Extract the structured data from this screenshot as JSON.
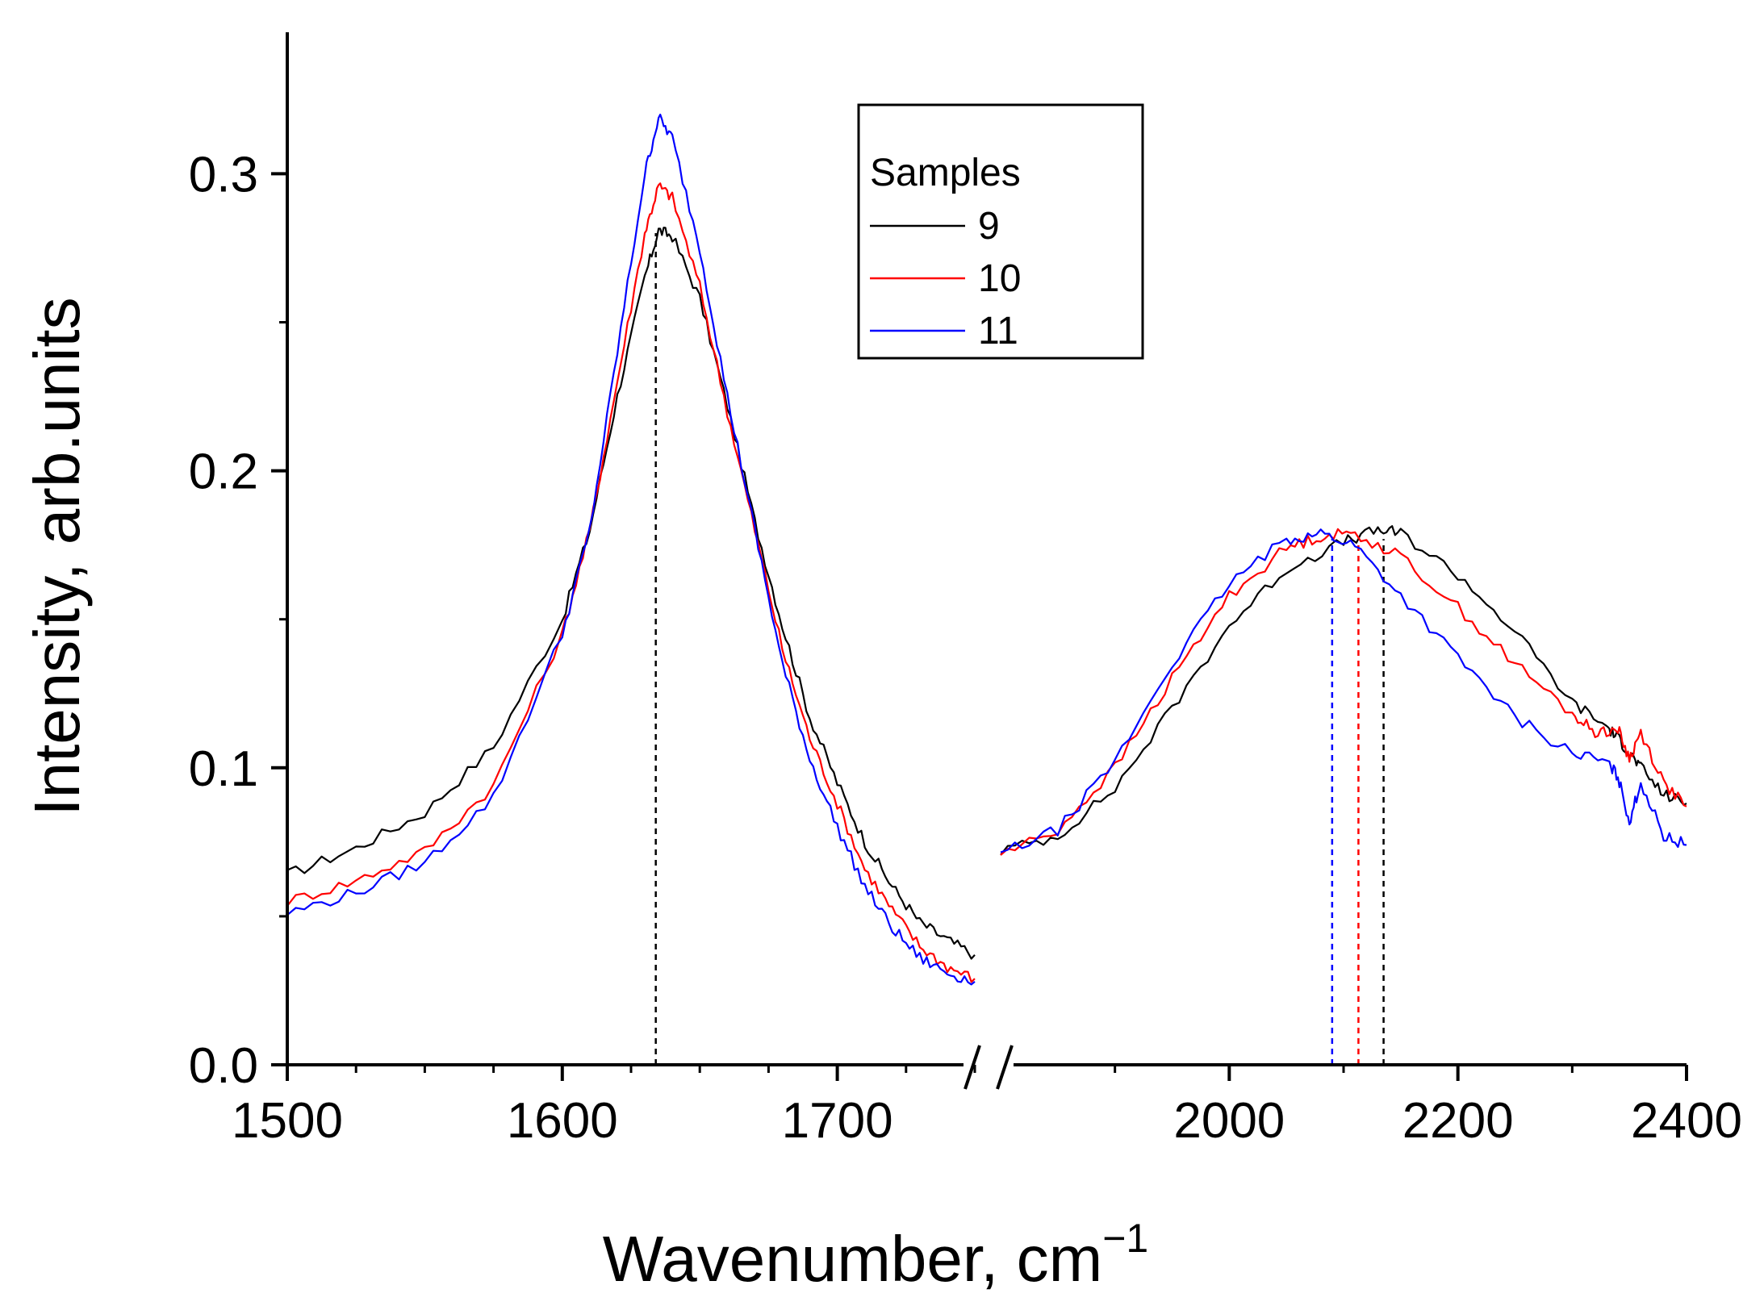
{
  "chart_data": {
    "type": "line",
    "title": "",
    "xlabel": "Wavenumber, cm",
    "xlabel_superscript": "−1",
    "ylabel": "Intensity, arb.units",
    "y_ticks": [
      "0.0",
      "0.1",
      "0.2",
      "0.3"
    ],
    "ylim": [
      0,
      0.35
    ],
    "broken_x_axis": true,
    "panels": [
      {
        "name": "left",
        "xlim": [
          1500,
          1750
        ],
        "tick_labels": [
          "1500",
          "1600",
          "1700"
        ],
        "minor_step": 25,
        "major_step": 100
      },
      {
        "name": "right",
        "xlim": [
          1800,
          2400
        ],
        "tick_labels": [
          "2000",
          "2200",
          "2400"
        ],
        "minor_step": 100,
        "major_step": 200
      }
    ],
    "legend": {
      "title": "Samples",
      "position": "top-center",
      "entries": [
        {
          "label": "9",
          "color": "#000000"
        },
        {
          "label": "10",
          "color": "#ff0000"
        },
        {
          "label": "11",
          "color": "#0000ff"
        }
      ]
    },
    "series": [
      {
        "name": "9",
        "color": "#000000",
        "left": [
          [
            1500,
            0.064
          ],
          [
            1525,
            0.073
          ],
          [
            1550,
            0.085
          ],
          [
            1575,
            0.107
          ],
          [
            1600,
            0.15
          ],
          [
            1610,
            0.18
          ],
          [
            1620,
            0.225
          ],
          [
            1630,
            0.265
          ],
          [
            1635,
            0.281
          ],
          [
            1640,
            0.279
          ],
          [
            1650,
            0.258
          ],
          [
            1660,
            0.222
          ],
          [
            1670,
            0.183
          ],
          [
            1680,
            0.148
          ],
          [
            1690,
            0.117
          ],
          [
            1700,
            0.095
          ],
          [
            1710,
            0.075
          ],
          [
            1720,
            0.06
          ],
          [
            1730,
            0.048
          ],
          [
            1740,
            0.042
          ],
          [
            1750,
            0.037
          ]
        ],
        "right": [
          [
            1800,
            0.072
          ],
          [
            1850,
            0.077
          ],
          [
            1900,
            0.093
          ],
          [
            1950,
            0.12
          ],
          [
            2000,
            0.148
          ],
          [
            2050,
            0.167
          ],
          [
            2100,
            0.176
          ],
          [
            2130,
            0.18
          ],
          [
            2150,
            0.179
          ],
          [
            2200,
            0.165
          ],
          [
            2250,
            0.146
          ],
          [
            2300,
            0.122
          ],
          [
            2330,
            0.114
          ],
          [
            2340,
            0.11
          ],
          [
            2350,
            0.105
          ],
          [
            2360,
            0.1
          ],
          [
            2380,
            0.091
          ],
          [
            2400,
            0.088
          ]
        ],
        "peak_marker": 2135
      },
      {
        "name": "10",
        "color": "#ff0000",
        "left": [
          [
            1500,
            0.055
          ],
          [
            1525,
            0.062
          ],
          [
            1550,
            0.072
          ],
          [
            1575,
            0.094
          ],
          [
            1600,
            0.145
          ],
          [
            1610,
            0.18
          ],
          [
            1620,
            0.23
          ],
          [
            1630,
            0.28
          ],
          [
            1635,
            0.296
          ],
          [
            1640,
            0.292
          ],
          [
            1650,
            0.262
          ],
          [
            1660,
            0.22
          ],
          [
            1670,
            0.18
          ],
          [
            1680,
            0.14
          ],
          [
            1690,
            0.11
          ],
          [
            1700,
            0.088
          ],
          [
            1710,
            0.066
          ],
          [
            1720,
            0.052
          ],
          [
            1730,
            0.04
          ],
          [
            1740,
            0.033
          ],
          [
            1750,
            0.029
          ]
        ],
        "right": [
          [
            1800,
            0.071
          ],
          [
            1850,
            0.079
          ],
          [
            1900,
            0.1
          ],
          [
            1950,
            0.13
          ],
          [
            2000,
            0.158
          ],
          [
            2050,
            0.174
          ],
          [
            2080,
            0.178
          ],
          [
            2110,
            0.179
          ],
          [
            2150,
            0.171
          ],
          [
            2200,
            0.154
          ],
          [
            2250,
            0.135
          ],
          [
            2300,
            0.118
          ],
          [
            2320,
            0.112
          ],
          [
            2340,
            0.113
          ],
          [
            2350,
            0.103
          ],
          [
            2360,
            0.112
          ],
          [
            2380,
            0.095
          ],
          [
            2400,
            0.087
          ]
        ],
        "peak_marker": 2113
      },
      {
        "name": "11",
        "color": "#0000ff",
        "left": [
          [
            1500,
            0.051
          ],
          [
            1525,
            0.058
          ],
          [
            1550,
            0.068
          ],
          [
            1575,
            0.09
          ],
          [
            1600,
            0.145
          ],
          [
            1610,
            0.18
          ],
          [
            1620,
            0.24
          ],
          [
            1630,
            0.3
          ],
          [
            1635,
            0.319
          ],
          [
            1640,
            0.312
          ],
          [
            1650,
            0.275
          ],
          [
            1660,
            0.225
          ],
          [
            1670,
            0.18
          ],
          [
            1680,
            0.135
          ],
          [
            1690,
            0.103
          ],
          [
            1700,
            0.08
          ],
          [
            1710,
            0.06
          ],
          [
            1720,
            0.046
          ],
          [
            1730,
            0.036
          ],
          [
            1740,
            0.031
          ],
          [
            1750,
            0.028
          ]
        ],
        "right": [
          [
            1800,
            0.071
          ],
          [
            1850,
            0.079
          ],
          [
            1900,
            0.102
          ],
          [
            1950,
            0.135
          ],
          [
            2000,
            0.162
          ],
          [
            2050,
            0.177
          ],
          [
            2080,
            0.179
          ],
          [
            2110,
            0.175
          ],
          [
            2150,
            0.158
          ],
          [
            2200,
            0.137
          ],
          [
            2250,
            0.117
          ],
          [
            2300,
            0.105
          ],
          [
            2330,
            0.102
          ],
          [
            2340,
            0.097
          ],
          [
            2350,
            0.082
          ],
          [
            2360,
            0.095
          ],
          [
            2380,
            0.077
          ],
          [
            2400,
            0.074
          ]
        ],
        "peak_marker": 2090
      }
    ],
    "annotations": [
      {
        "type": "vertical-dashed",
        "panel": "left",
        "x": 1634,
        "color": "#000000"
      }
    ]
  }
}
